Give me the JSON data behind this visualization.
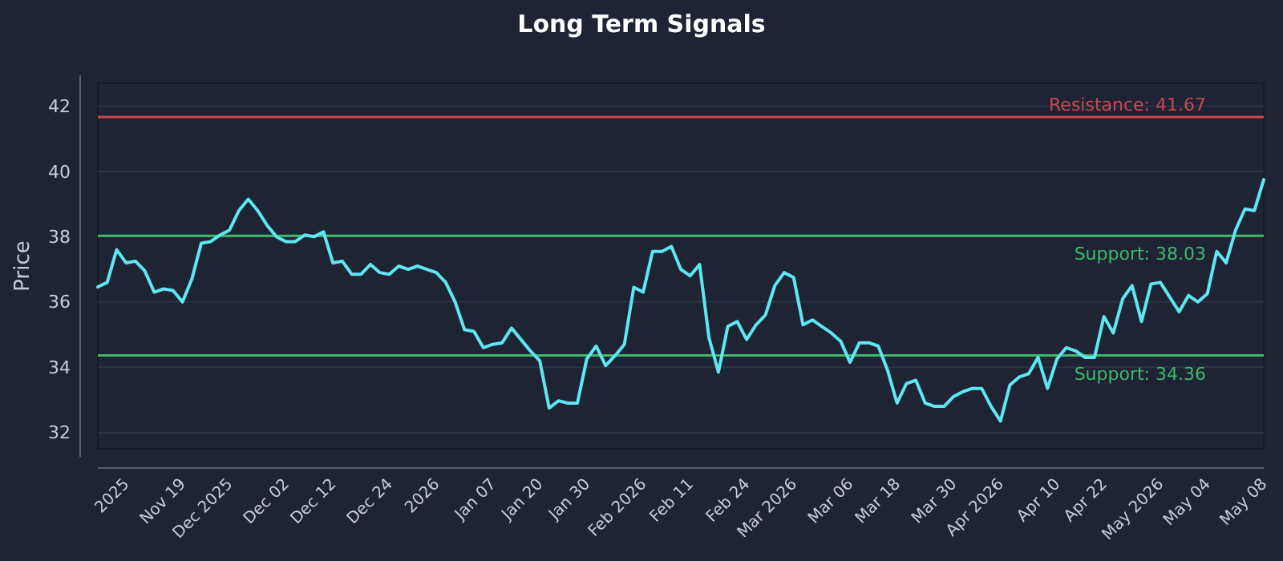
{
  "chart_data": {
    "type": "line",
    "title": "Long Term Signals",
    "ylabel": "Price",
    "categories": [
      null,
      null,
      null,
      "2025",
      null,
      null,
      null,
      null,
      null,
      "Nov 19",
      null,
      null,
      null,
      null,
      "Dec 2025",
      null,
      null,
      null,
      null,
      null,
      "Dec 02",
      null,
      null,
      null,
      null,
      "Dec 12",
      null,
      null,
      null,
      null,
      null,
      "Dec 24",
      null,
      null,
      null,
      null,
      "2026",
      null,
      null,
      null,
      null,
      null,
      "Jan 07",
      null,
      null,
      null,
      null,
      "Jan 20",
      null,
      null,
      null,
      null,
      "Jan 30",
      null,
      null,
      null,
      null,
      null,
      "Feb 2026",
      null,
      null,
      null,
      null,
      "Feb 11",
      null,
      null,
      null,
      null,
      null,
      "Feb 24",
      null,
      null,
      null,
      null,
      "Mar 2026",
      null,
      null,
      null,
      null,
      null,
      "Mar 06",
      null,
      null,
      null,
      null,
      "Mar 18",
      null,
      null,
      null,
      null,
      null,
      "Mar 30",
      null,
      null,
      null,
      null,
      "Apr 2026",
      null,
      null,
      null,
      null,
      null,
      "Apr 10",
      null,
      null,
      null,
      null,
      "Apr 22",
      null,
      null,
      null,
      null,
      null,
      "May 2026",
      null,
      null,
      null,
      null,
      "May 04",
      null,
      null,
      null,
      null,
      null,
      "May 08"
    ],
    "series": [
      {
        "color": "#5ee6f2",
        "values": [
          36.46,
          36.6,
          37.6,
          37.2,
          37.25,
          36.95,
          36.3,
          36.4,
          36.35,
          36.0,
          36.7,
          37.8,
          37.85,
          38.05,
          38.2,
          38.8,
          39.15,
          38.8,
          38.35,
          38.0,
          37.85,
          37.85,
          38.05,
          38.0,
          38.15,
          37.2,
          37.25,
          36.85,
          36.85,
          37.15,
          36.9,
          36.85,
          37.1,
          37.0,
          37.1,
          37.0,
          36.9,
          36.6,
          36.0,
          35.15,
          35.1,
          34.6,
          34.7,
          34.75,
          35.2,
          34.85,
          34.5,
          34.2,
          32.75,
          32.97,
          32.9,
          32.9,
          34.25,
          34.65,
          34.05,
          34.35,
          34.7,
          36.45,
          36.3,
          37.55,
          37.55,
          37.7,
          37.0,
          36.8,
          37.15,
          34.9,
          33.85,
          35.25,
          35.4,
          34.85,
          35.3,
          35.6,
          36.5,
          36.9,
          36.75,
          35.3,
          35.45,
          35.25,
          35.05,
          34.8,
          34.15,
          34.75,
          34.75,
          34.65,
          33.9,
          32.9,
          33.5,
          33.6,
          32.9,
          32.8,
          32.8,
          33.1,
          33.25,
          33.35,
          33.35,
          32.8,
          32.35,
          33.45,
          33.7,
          33.8,
          34.3,
          33.35,
          34.25,
          34.6,
          34.5,
          34.3,
          34.3,
          35.55,
          35.05,
          36.1,
          36.5,
          35.4,
          36.55,
          36.6,
          36.15,
          35.7,
          36.2,
          36.0,
          36.25,
          37.55,
          37.2,
          38.2,
          38.85,
          38.8,
          39.75
        ]
      }
    ],
    "ylim": [
      31.5,
      42.7
    ],
    "yticks": [
      32,
      34,
      36,
      38,
      40,
      42
    ],
    "grid": "y",
    "marker": "none",
    "line_style": "solid",
    "ref_lines": [
      {
        "axis": "y",
        "value": 41.67,
        "label": "Resistance: 41.67",
        "color": "#c9474f"
      },
      {
        "axis": "y",
        "value": 38.03,
        "label": "Support: 38.03",
        "color": "#3dba6a"
      },
      {
        "axis": "y",
        "value": 34.36,
        "label": "Support: 34.36",
        "color": "#3dba6a"
      }
    ]
  }
}
